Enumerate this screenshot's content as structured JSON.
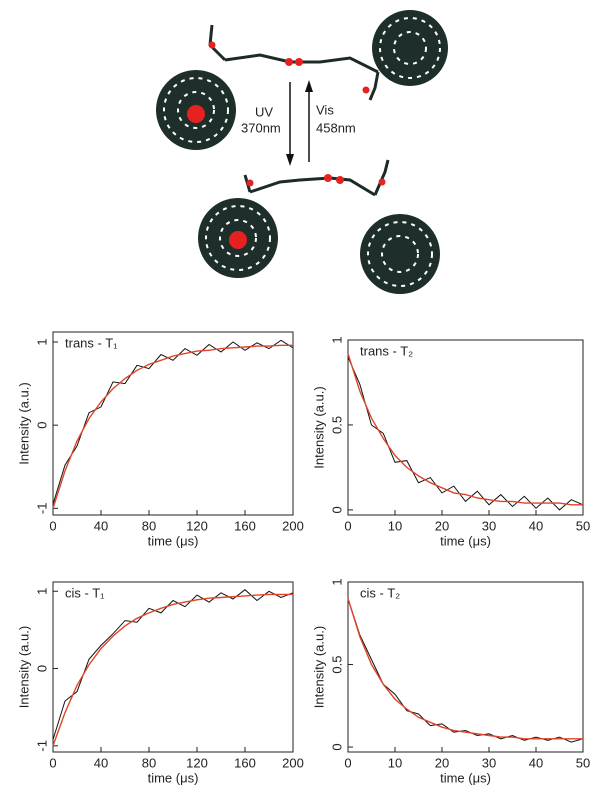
{
  "diagram": {
    "uv_label": [
      "UV",
      "370nm"
    ],
    "vis_label": [
      "Vis",
      "458nm"
    ]
  },
  "chart_data": [
    {
      "type": "line",
      "title": "trans - T₁",
      "xlabel": "time (μs)",
      "ylabel": "Intensity (a.u.)",
      "x": [
        0,
        10,
        20,
        30,
        40,
        50,
        60,
        70,
        80,
        90,
        100,
        110,
        120,
        130,
        140,
        150,
        160,
        170,
        180,
        190,
        200
      ],
      "series": [
        {
          "color": "#111111",
          "values": [
            -0.95,
            -0.48,
            -0.25,
            0.15,
            0.22,
            0.52,
            0.5,
            0.72,
            0.68,
            0.85,
            0.78,
            0.92,
            0.84,
            0.97,
            0.88,
            1.0,
            0.9,
            0.99,
            0.92,
            1.02,
            0.93
          ]
        },
        {
          "color": "#e0452c",
          "values": [
            -1.0,
            -0.55,
            -0.19,
            0.08,
            0.28,
            0.44,
            0.56,
            0.66,
            0.73,
            0.78,
            0.83,
            0.86,
            0.89,
            0.9,
            0.92,
            0.93,
            0.94,
            0.95,
            0.95,
            0.96,
            0.96
          ]
        }
      ],
      "xlim": [
        0,
        200
      ],
      "xticks": [
        0,
        40,
        80,
        120,
        160,
        200
      ],
      "ylim": [
        -1.08,
        1.12
      ],
      "yticks": [
        -1,
        0,
        1
      ]
    },
    {
      "type": "line",
      "title": "trans - T₂",
      "xlabel": "time (μs)",
      "ylabel": "Intensity (a.u.)",
      "x": [
        0,
        2.5,
        5,
        7.5,
        10,
        12.5,
        15,
        17.5,
        20,
        22.5,
        25,
        27.5,
        30,
        32.5,
        35,
        37.5,
        40,
        42.5,
        45,
        47.5,
        50
      ],
      "series": [
        {
          "color": "#111111",
          "values": [
            0.9,
            0.74,
            0.5,
            0.45,
            0.28,
            0.29,
            0.16,
            0.19,
            0.1,
            0.14,
            0.05,
            0.11,
            0.03,
            0.09,
            0.02,
            0.08,
            0.01,
            0.07,
            0.0,
            0.06,
            0.03
          ]
        },
        {
          "color": "#e0452c",
          "values": [
            0.92,
            0.7,
            0.54,
            0.42,
            0.32,
            0.25,
            0.2,
            0.16,
            0.13,
            0.1,
            0.09,
            0.07,
            0.06,
            0.05,
            0.05,
            0.04,
            0.04,
            0.04,
            0.04,
            0.03,
            0.03
          ]
        }
      ],
      "xlim": [
        0,
        50
      ],
      "xticks": [
        0,
        10,
        20,
        30,
        40,
        50
      ],
      "ylim": [
        -0.03,
        1.0
      ],
      "yticks": [
        0,
        0.5,
        1
      ]
    },
    {
      "type": "line",
      "title": "cis - T₁",
      "xlabel": "time (μs)",
      "ylabel": "Intensity (a.u.)",
      "x": [
        0,
        10,
        20,
        30,
        40,
        50,
        60,
        70,
        80,
        90,
        100,
        110,
        120,
        130,
        140,
        150,
        160,
        170,
        180,
        190,
        200
      ],
      "series": [
        {
          "color": "#111111",
          "values": [
            -0.92,
            -0.42,
            -0.3,
            0.12,
            0.3,
            0.45,
            0.62,
            0.6,
            0.78,
            0.72,
            0.88,
            0.8,
            0.95,
            0.86,
            0.98,
            0.9,
            1.02,
            0.88,
            1.0,
            0.92,
            0.98
          ]
        },
        {
          "color": "#e0452c",
          "values": [
            -1.0,
            -0.57,
            -0.22,
            0.05,
            0.26,
            0.42,
            0.55,
            0.65,
            0.72,
            0.78,
            0.83,
            0.86,
            0.89,
            0.91,
            0.92,
            0.93,
            0.94,
            0.95,
            0.96,
            0.96,
            0.96
          ]
        }
      ],
      "xlim": [
        0,
        200
      ],
      "xticks": [
        0,
        40,
        80,
        120,
        160,
        200
      ],
      "ylim": [
        -1.08,
        1.12
      ],
      "yticks": [
        -1,
        0,
        1
      ]
    },
    {
      "type": "line",
      "title": "cis - T₂",
      "xlabel": "time (μs)",
      "ylabel": "Intensity (a.u.)",
      "x": [
        0,
        2.5,
        5,
        7.5,
        10,
        12.5,
        15,
        17.5,
        20,
        22.5,
        25,
        27.5,
        30,
        32.5,
        35,
        37.5,
        40,
        42.5,
        45,
        47.5,
        50
      ],
      "series": [
        {
          "color": "#111111",
          "values": [
            0.9,
            0.68,
            0.53,
            0.38,
            0.32,
            0.22,
            0.2,
            0.13,
            0.14,
            0.09,
            0.1,
            0.07,
            0.08,
            0.05,
            0.07,
            0.04,
            0.06,
            0.04,
            0.06,
            0.03,
            0.05
          ]
        },
        {
          "color": "#e0452c",
          "values": [
            0.9,
            0.67,
            0.5,
            0.38,
            0.29,
            0.23,
            0.18,
            0.15,
            0.12,
            0.1,
            0.09,
            0.08,
            0.07,
            0.06,
            0.06,
            0.05,
            0.05,
            0.05,
            0.05,
            0.05,
            0.05
          ]
        }
      ],
      "xlim": [
        0,
        50
      ],
      "xticks": [
        0,
        10,
        20,
        30,
        40,
        50
      ],
      "ylim": [
        -0.03,
        1.0
      ],
      "yticks": [
        0,
        0.5,
        1
      ]
    }
  ]
}
